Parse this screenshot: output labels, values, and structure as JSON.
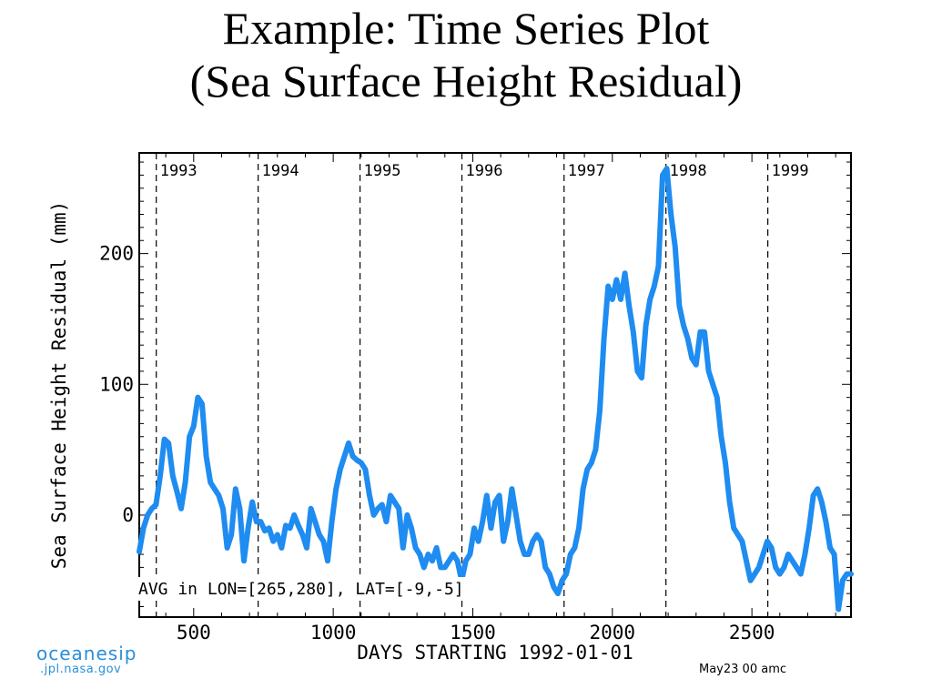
{
  "slide": {
    "title_line1": "Example: Time Series Plot",
    "title_line2": "(Sea Surface Height Residual)"
  },
  "logo": {
    "line1": "oceanesip",
    "line2": ".jpl.nasa.gov"
  },
  "footer_stamp": "May23 00 amc",
  "colors": {
    "series": "#1e8cf0",
    "axes": "#000000",
    "logo": "#2a8fd8"
  },
  "chart_data": {
    "type": "line",
    "title": "",
    "xlabel": "DAYS STARTING 1992-01-01",
    "ylabel": "Sea Surface Height Residual (mm)",
    "xlim": [
      305,
      2855
    ],
    "ylim": [
      -78,
      277
    ],
    "xticks": [
      500,
      1000,
      1500,
      2000,
      2500
    ],
    "yticks": [
      0,
      100,
      200
    ],
    "grid": false,
    "annotation": "AVG in LON=[265,280], LAT=[-9,-5]",
    "year_markers": [
      {
        "label": "1993",
        "x": 366
      },
      {
        "label": "1994",
        "x": 731
      },
      {
        "label": "1995",
        "x": 1096
      },
      {
        "label": "1996",
        "x": 1461
      },
      {
        "label": "1997",
        "x": 1827
      },
      {
        "label": "1998",
        "x": 2192
      },
      {
        "label": "1999",
        "x": 2557
      }
    ],
    "series": [
      {
        "x": [
          305,
          320,
          335,
          350,
          365,
          380,
          395,
          410,
          425,
          440,
          455,
          470,
          485,
          500,
          515,
          530,
          545,
          560,
          575,
          590,
          605,
          620,
          635,
          650,
          665,
          680,
          695,
          710,
          725,
          740,
          755,
          770,
          785,
          800,
          815,
          830,
          845,
          860,
          875,
          890,
          905,
          920,
          935,
          950,
          965,
          980,
          995,
          1010,
          1025,
          1040,
          1055,
          1070,
          1085,
          1100,
          1115,
          1130,
          1145,
          1160,
          1175,
          1190,
          1205,
          1220,
          1235,
          1250,
          1265,
          1280,
          1295,
          1310,
          1325,
          1340,
          1355,
          1370,
          1385,
          1400,
          1415,
          1430,
          1445,
          1460,
          1475,
          1490,
          1505,
          1520,
          1535,
          1550,
          1565,
          1580,
          1595,
          1610,
          1625,
          1640,
          1655,
          1670,
          1685,
          1700,
          1715,
          1730,
          1745,
          1760,
          1775,
          1790,
          1805,
          1820,
          1835,
          1850,
          1865,
          1880,
          1895,
          1910,
          1925,
          1940,
          1955,
          1970,
          1985,
          2000,
          2015,
          2030,
          2045,
          2060,
          2075,
          2090,
          2105,
          2120,
          2135,
          2150,
          2165,
          2180,
          2195,
          2210,
          2225,
          2240,
          2255,
          2270,
          2285,
          2300,
          2315,
          2330,
          2345,
          2360,
          2375,
          2390,
          2405,
          2420,
          2435,
          2450,
          2465,
          2480,
          2495,
          2510,
          2525,
          2540,
          2555,
          2570,
          2585,
          2600,
          2615,
          2630,
          2645,
          2660,
          2675,
          2690,
          2705,
          2720,
          2735,
          2750,
          2765,
          2780,
          2795,
          2810,
          2825,
          2840,
          2855
        ],
        "y": [
          -28,
          -10,
          0,
          5,
          8,
          30,
          58,
          55,
          30,
          18,
          5,
          25,
          60,
          68,
          90,
          85,
          45,
          25,
          20,
          15,
          5,
          -25,
          -15,
          20,
          5,
          -35,
          -10,
          10,
          -5,
          -5,
          -12,
          -10,
          -20,
          -15,
          -25,
          -8,
          -10,
          0,
          -8,
          -15,
          -25,
          5,
          -5,
          -15,
          -20,
          -35,
          -5,
          20,
          35,
          45,
          55,
          45,
          42,
          40,
          35,
          15,
          0,
          5,
          8,
          -5,
          15,
          10,
          5,
          -25,
          0,
          -10,
          -25,
          -30,
          -40,
          -30,
          -35,
          -25,
          -40,
          -40,
          -35,
          -30,
          -35,
          -50,
          -35,
          -30,
          -10,
          -20,
          -5,
          15,
          -10,
          10,
          15,
          -20,
          -5,
          20,
          0,
          -20,
          -30,
          -30,
          -20,
          -15,
          -20,
          -40,
          -45,
          -55,
          -60,
          -50,
          -45,
          -30,
          -25,
          -10,
          20,
          35,
          40,
          50,
          80,
          135,
          175,
          165,
          180,
          165,
          185,
          160,
          140,
          110,
          105,
          145,
          165,
          175,
          190,
          260,
          265,
          230,
          205,
          160,
          145,
          135,
          120,
          115,
          140,
          140,
          110,
          100,
          90,
          60,
          40,
          10,
          -10,
          -15,
          -20,
          -35,
          -50,
          -45,
          -40,
          -30,
          -20,
          -25,
          -40,
          -45,
          -40,
          -30,
          -35,
          -40,
          -45,
          -30,
          -10,
          15,
          20,
          10,
          -5,
          -25,
          -30,
          -72,
          -50,
          -45,
          -45
        ]
      }
    ]
  }
}
